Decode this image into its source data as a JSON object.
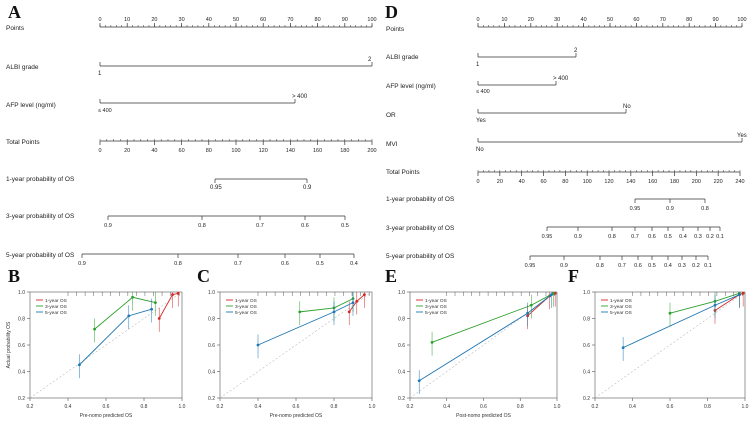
{
  "panels": {
    "A": "A",
    "B": "B",
    "C": "C",
    "D": "D",
    "E": "E",
    "F": "F"
  },
  "nomogram_A": {
    "rows": [
      {
        "name": "Points",
        "labels": [
          "0",
          "10",
          "20",
          "30",
          "40",
          "50",
          "60",
          "70",
          "80",
          "90",
          "100"
        ]
      },
      {
        "name": "ALBI grade",
        "low": "1",
        "high": "2"
      },
      {
        "name": "AFP level (ng/ml)",
        "low": "≤ 400",
        "high": "> 400"
      },
      {
        "name": "Total Points",
        "labels": [
          "0",
          "20",
          "40",
          "60",
          "80",
          "100",
          "120",
          "140",
          "160",
          "180",
          "200"
        ]
      },
      {
        "name": "1-year probability of OS",
        "labels": [
          "0.95",
          "0.9"
        ]
      },
      {
        "name": "3-year probability of OS",
        "labels": [
          "0.9",
          "0.8",
          "0.7",
          "0.6",
          "0.5"
        ]
      },
      {
        "name": "5-year probability of OS",
        "labels": [
          "0.9",
          "0.8",
          "0.7",
          "0.6",
          "0.5",
          "0.4"
        ]
      }
    ]
  },
  "nomogram_D": {
    "rows": [
      {
        "name": "Points",
        "labels": [
          "0",
          "10",
          "20",
          "30",
          "40",
          "50",
          "60",
          "70",
          "80",
          "90",
          "100"
        ]
      },
      {
        "name": "ALBI grade",
        "low": "1",
        "high": "2"
      },
      {
        "name": "AFP level (ng/ml)",
        "low": "≤ 400",
        "high": "> 400"
      },
      {
        "name": "OR",
        "low": "Yes",
        "high": "No"
      },
      {
        "name": "MVI",
        "low": "No",
        "high": "Yes"
      },
      {
        "name": "Total Points",
        "labels": [
          "0",
          "20",
          "40",
          "60",
          "80",
          "100",
          "120",
          "140",
          "160",
          "180",
          "200",
          "220",
          "240"
        ]
      },
      {
        "name": "1-year probability of OS",
        "labels": [
          "0.95",
          "0.9",
          "0.8"
        ]
      },
      {
        "name": "3-year probability of OS",
        "labels": [
          "0.95",
          "0.9",
          "0.8",
          "0.7",
          "0.6",
          "0.5",
          "0.4",
          "0.3",
          "0.2",
          "0.1"
        ]
      },
      {
        "name": "5-year probability of OS",
        "labels": [
          "0.95",
          "0.9",
          "0.8",
          "0.7",
          "0.6",
          "0.5",
          "0.4",
          "0.3",
          "0.2",
          "0.1"
        ]
      }
    ]
  },
  "chart_data": [
    {
      "panel": "B",
      "type": "line",
      "title": "",
      "xlabel": "Pre-nomo predicted OS",
      "ylabel": "Actual probability OS",
      "xlim": [
        0.2,
        1.0
      ],
      "ylim": [
        0.2,
        1.0
      ],
      "x_ticks": [
        "0.2",
        "0.4",
        "0.6",
        "0.8",
        "1.0"
      ],
      "y_ticks": [
        "0.2",
        "0.4",
        "0.6",
        "0.8",
        "1.0"
      ],
      "legend": [
        "1-year OS",
        "3-year OS",
        "5-year OS"
      ],
      "series": [
        {
          "name": "1-year OS",
          "color": "#d62728",
          "x": [
            0.88,
            0.95,
            0.98
          ],
          "y": [
            0.8,
            0.98,
            0.99
          ]
        },
        {
          "name": "3-year OS",
          "color": "#2ca02c",
          "x": [
            0.54,
            0.74,
            0.86
          ],
          "y": [
            0.72,
            0.96,
            0.92
          ]
        },
        {
          "name": "5-year OS",
          "color": "#1f77b4",
          "x": [
            0.46,
            0.72,
            0.84
          ],
          "y": [
            0.45,
            0.82,
            0.87
          ]
        }
      ]
    },
    {
      "panel": "C",
      "type": "line",
      "title": "",
      "xlabel": "Pre-nomo predicted OS",
      "ylabel": "",
      "xlim": [
        0.2,
        1.0
      ],
      "ylim": [
        0.2,
        1.0
      ],
      "x_ticks": [
        "0.2",
        "0.4",
        "0.6",
        "0.8",
        "1.0"
      ],
      "y_ticks": [
        "0.2",
        "0.4",
        "0.6",
        "0.8",
        "1.0"
      ],
      "legend": [
        "1-year OS",
        "3-year OS",
        "5-year OS"
      ],
      "series": [
        {
          "name": "1-year OS",
          "color": "#d62728",
          "x": [
            0.88,
            0.92,
            0.96
          ],
          "y": [
            0.85,
            0.93,
            0.98
          ]
        },
        {
          "name": "3-year OS",
          "color": "#2ca02c",
          "x": [
            0.62,
            0.8,
            0.9
          ],
          "y": [
            0.85,
            0.88,
            0.95
          ]
        },
        {
          "name": "5-year OS",
          "color": "#1f77b4",
          "x": [
            0.4,
            0.8,
            0.9
          ],
          "y": [
            0.6,
            0.85,
            0.92
          ]
        }
      ]
    },
    {
      "panel": "E",
      "type": "line",
      "title": "",
      "xlabel": "Post-nomo predicted OS",
      "ylabel": "",
      "xlim": [
        0.2,
        1.0
      ],
      "ylim": [
        0.2,
        1.0
      ],
      "x_ticks": [
        "0.2",
        "0.4",
        "0.6",
        "0.8",
        "1.0"
      ],
      "y_ticks": [
        "0.2",
        "0.4",
        "0.6",
        "0.8",
        "1.0"
      ],
      "legend": [
        "1-year OS",
        "3-year OS",
        "5-year OS"
      ],
      "series": [
        {
          "name": "1-year OS",
          "color": "#d62728",
          "x": [
            0.84,
            0.96,
            0.99
          ],
          "y": [
            0.82,
            0.97,
            0.99
          ]
        },
        {
          "name": "3-year OS",
          "color": "#2ca02c",
          "x": [
            0.32,
            0.86,
            0.98
          ],
          "y": [
            0.62,
            0.9,
            0.99
          ]
        },
        {
          "name": "5-year OS",
          "color": "#1f77b4",
          "x": [
            0.25,
            0.84,
            0.97
          ],
          "y": [
            0.33,
            0.84,
            0.98
          ]
        }
      ]
    },
    {
      "panel": "F",
      "type": "line",
      "title": "",
      "xlabel": "",
      "ylabel": "",
      "xlim": [
        0.2,
        1.0
      ],
      "ylim": [
        0.2,
        1.0
      ],
      "x_ticks": [
        "0.2",
        "0.4",
        "0.6",
        "0.8",
        "1.0"
      ],
      "y_ticks": [
        "0.2",
        "0.4",
        "0.6",
        "0.8",
        "1.0"
      ],
      "legend": [
        "1-year OS",
        "3-year OS",
        "5-year OS"
      ],
      "series": [
        {
          "name": "1-year OS",
          "color": "#d62728",
          "x": [
            0.84,
            0.97,
            0.99
          ],
          "y": [
            0.86,
            0.98,
            0.99
          ]
        },
        {
          "name": "3-year OS",
          "color": "#2ca02c",
          "x": [
            0.6,
            0.84,
            0.97
          ],
          "y": [
            0.84,
            0.93,
            0.99
          ]
        },
        {
          "name": "5-year OS",
          "color": "#1f77b4",
          "x": [
            0.35,
            0.84,
            0.97
          ],
          "y": [
            0.58,
            0.9,
            0.98
          ]
        }
      ]
    }
  ]
}
